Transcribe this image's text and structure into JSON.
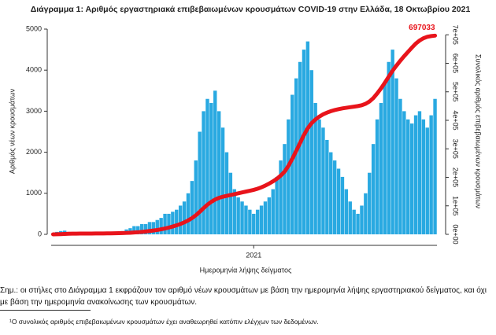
{
  "chart_data": {
    "type": "bar-line",
    "title": "Διάγραμμα 1: Αριθμός εργαστηριακά επιβεβαιωμένων κρουσμάτων COVID-19 στην Ελλάδα, 18 Οκτωβρίου 2021",
    "y_label": "Αριθμός νέων κρουσμάτων",
    "y2_label": "Συνολικός αριθμός επιβεβαιωμένων κρουσμάτων",
    "x_label": "Ημερομηνία λήψης δείγματος",
    "categories": [
      null,
      null,
      null,
      null,
      null,
      null,
      null,
      null,
      null,
      null,
      null,
      null,
      null,
      null,
      null,
      null,
      null,
      null,
      null,
      null,
      null,
      null,
      null,
      null,
      null,
      null,
      null,
      null,
      null,
      null,
      null,
      null,
      null,
      null,
      null,
      null,
      null,
      null,
      null,
      null,
      null,
      null,
      null,
      null,
      null,
      null,
      null,
      null,
      null,
      null,
      null,
      null,
      "2021",
      null,
      null,
      null,
      null,
      null,
      null,
      null,
      null,
      null,
      null,
      null,
      null,
      null,
      null,
      null,
      null,
      null,
      null,
      null,
      null,
      null,
      null,
      null,
      null,
      null,
      null,
      null,
      null,
      null,
      null,
      null,
      null,
      null,
      null,
      null,
      null,
      null,
      null,
      null,
      null,
      null,
      null,
      null,
      null,
      null,
      null,
      null
    ],
    "series": [
      {
        "name": "Νέα κρούσματα",
        "color": "#29a9e1",
        "values": [
          30,
          60,
          80,
          90,
          60,
          40,
          30,
          20,
          20,
          20,
          20,
          20,
          20,
          20,
          25,
          30,
          40,
          50,
          80,
          120,
          150,
          200,
          200,
          250,
          250,
          300,
          300,
          350,
          400,
          500,
          500,
          550,
          600,
          700,
          800,
          1000,
          1300,
          1800,
          2500,
          3000,
          3300,
          3200,
          3500,
          3000,
          2600,
          2000,
          1500,
          1100,
          900,
          800,
          700,
          600,
          500,
          600,
          700,
          800,
          900,
          1100,
          1400,
          1800,
          2200,
          2800,
          3400,
          3800,
          4200,
          4500,
          4700,
          4000,
          3200,
          2800,
          2600,
          2300,
          2000,
          1800,
          1600,
          1400,
          1100,
          800,
          600,
          500,
          700,
          1000,
          1500,
          2200,
          2800,
          3200,
          3700,
          4200,
          4500,
          3800,
          3300,
          3000,
          2800,
          2700,
          2900,
          3000,
          2800,
          2600,
          2900,
          3300
        ]
      },
      {
        "name": "Συνολικά κρούσματα",
        "color": "#e8141b",
        "axis": "y2",
        "values": [
          100,
          300,
          800,
          1500,
          2000,
          2300,
          2500,
          2600,
          2700,
          2800,
          2900,
          3000,
          3100,
          3200,
          3400,
          3600,
          3800,
          4100,
          4500,
          5000,
          5600,
          6400,
          7400,
          8600,
          10000,
          11600,
          13400,
          15400,
          17800,
          20600,
          23800,
          27400,
          31600,
          36400,
          42000,
          48800,
          57000,
          67000,
          79000,
          92000,
          104000,
          114000,
          122000,
          128000,
          132000,
          135000,
          138000,
          141000,
          144000,
          147000,
          150000,
          153000,
          156000,
          160000,
          165000,
          171000,
          178000,
          186000,
          195000,
          206000,
          220000,
          240000,
          265000,
          292000,
          320000,
          348000,
          372000,
          390000,
          403000,
          413000,
          421000,
          427000,
          432000,
          436000,
          439000,
          442000,
          444000,
          446000,
          448000,
          450000,
          453000,
          458000,
          466000,
          478000,
          494000,
          512000,
          532000,
          553000,
          574000,
          592000,
          609000,
          625000,
          640000,
          655000,
          669000,
          680000,
          688000,
          693000,
          695500,
          697033
        ]
      }
    ],
    "annotations": [
      {
        "text": "697033"
      }
    ],
    "ylim": [
      0,
      5000
    ],
    "yticks": [
      0,
      1000,
      2000,
      3000,
      4000,
      5000
    ],
    "y2lim": [
      0,
      720000
    ],
    "y2ticks": [
      {
        "value": 0,
        "label": "0e+00"
      },
      {
        "value": 100000,
        "label": "1e+05"
      },
      {
        "value": 200000,
        "label": "2e+05"
      },
      {
        "value": 300000,
        "label": "3e+05"
      },
      {
        "value": 400000,
        "label": "4e+05"
      },
      {
        "value": 500000,
        "label": "5e+05"
      },
      {
        "value": 600000,
        "label": "6e+05"
      },
      {
        "value": 700000,
        "label": "7e+05"
      }
    ],
    "grid": false
  },
  "notes": {
    "note": "Σημ.: οι στήλες στο Διάγραμμα 1 εκφράζουν τον αριθμό νέων κρουσμάτων με βάση την ημερομηνία λήψης εργαστηριακού δείγματος, και όχι με βάση την ημερομηνία ανακοίνωσης των κρουσμάτων.",
    "footnote": "¹Ο συνολικός αριθμός επιβεβαιωμένων κρουσμάτων έχει αναθεωρηθεί κατόπιν ελέγχων των δεδομένων."
  }
}
